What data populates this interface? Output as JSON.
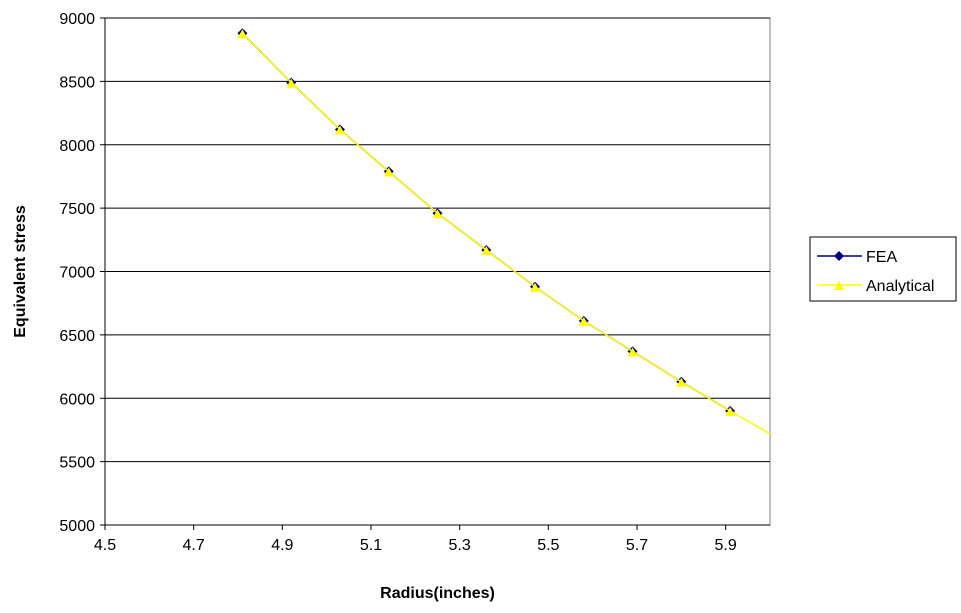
{
  "chart_data": {
    "type": "line",
    "title": "",
    "xlabel": "Radius(inches)",
    "ylabel": "Equivalent stress",
    "xlim": [
      4.5,
      6.0
    ],
    "ylim": [
      5000,
      9000
    ],
    "xticks": [
      "4.5",
      "4.7",
      "4.9",
      "5.1",
      "5.3",
      "5.5",
      "5.7",
      "5.9"
    ],
    "yticks": [
      "5000",
      "5500",
      "6000",
      "6500",
      "7000",
      "7500",
      "8000",
      "8500",
      "9000"
    ],
    "grid": "horizontal",
    "legend_position": "right",
    "series": [
      {
        "name": "FEA",
        "color": "#000080",
        "marker": "diamond",
        "x": [
          4.81,
          4.92,
          5.03,
          5.14,
          5.25,
          5.36,
          5.47,
          5.58,
          5.69,
          5.8,
          5.91
        ],
        "y": [
          8880,
          8490,
          8120,
          7790,
          7460,
          7170,
          6880,
          6610,
          6370,
          6130,
          5900
        ]
      },
      {
        "name": "Analytical",
        "color": "#ffff00",
        "marker": "triangle",
        "x": [
          4.81,
          4.92,
          5.03,
          5.14,
          5.25,
          5.36,
          5.47,
          5.58,
          5.69,
          5.8,
          5.91,
          6.0
        ],
        "y": [
          8880,
          8490,
          8120,
          7790,
          7460,
          7170,
          6880,
          6610,
          6370,
          6130,
          5900,
          5720
        ]
      }
    ]
  }
}
